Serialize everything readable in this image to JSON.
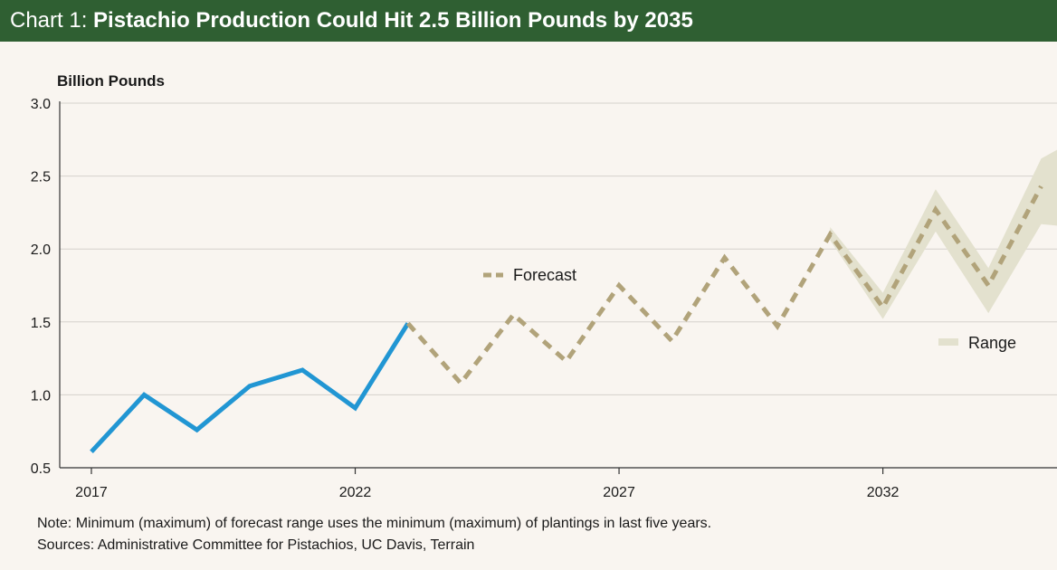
{
  "title": {
    "prefix": "Chart 1: ",
    "main": "Pistachio Production Could Hit 2.5 Billion Pounds by 2035"
  },
  "chart_data": {
    "type": "line",
    "title": "Pistachio Production Could Hit 2.5 Billion Pounds by 2035",
    "ylabel": "Billion Pounds",
    "xlabel": "",
    "ylim": [
      0.5,
      3.0
    ],
    "xlim": [
      2016.4,
      2035.3
    ],
    "yticks": [
      "0.5",
      "1.0",
      "1.5",
      "2.0",
      "2.5",
      "3.0"
    ],
    "ytick_values": [
      0.5,
      1.0,
      1.5,
      2.0,
      2.5,
      3.0
    ],
    "xticks": [
      "2017",
      "2022",
      "2027",
      "2032"
    ],
    "xtick_values": [
      2017,
      2022,
      2027,
      2032
    ],
    "grid": "horizontal",
    "series": [
      {
        "style": "solid",
        "color": "#2196d3",
        "x": [
          2017,
          2018,
          2019,
          2020,
          2021,
          2022,
          2023
        ],
        "values": [
          0.61,
          1.0,
          0.76,
          1.06,
          1.17,
          0.91,
          1.49
        ]
      },
      {
        "name": "Forecast",
        "style": "dashed",
        "color": "#b1a37a",
        "x": [
          2023,
          2024,
          2025,
          2026,
          2027,
          2028,
          2029,
          2030,
          2031,
          2032,
          2033,
          2034,
          2035
        ],
        "values": [
          1.49,
          1.08,
          1.55,
          1.23,
          1.75,
          1.37,
          1.94,
          1.47,
          2.1,
          1.6,
          2.27,
          1.75,
          2.43
        ]
      }
    ],
    "range": {
      "name": "Range",
      "color": "#e3e1ce",
      "x": [
        2031,
        2032,
        2033,
        2034,
        2035,
        2035.3
      ],
      "lower": [
        2.06,
        1.52,
        2.12,
        1.56,
        2.17,
        2.16
      ],
      "upper": [
        2.15,
        1.7,
        2.41,
        1.87,
        2.62,
        2.68
      ]
    },
    "legend": [
      {
        "label": "Forecast",
        "placement": "middle"
      },
      {
        "label": "Range",
        "placement": "right"
      }
    ],
    "notes": [
      "Note: Minimum (maximum) of forecast range uses the minimum (maximum) of plantings in last five years.",
      "Sources: Administrative Committee for Pistachios, UC Davis, Terrain"
    ]
  }
}
